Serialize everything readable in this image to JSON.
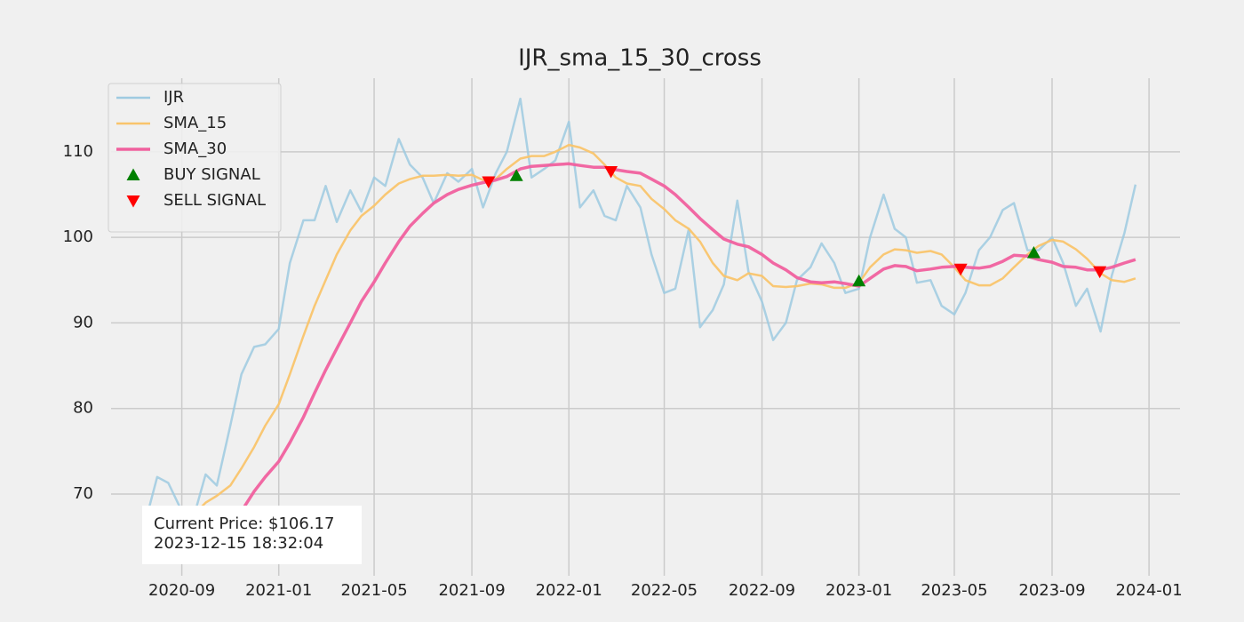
{
  "chart_data": {
    "type": "line",
    "title": "IJR_sma_15_30_cross",
    "x": [
      "2020-07-15",
      "2020-08-01",
      "2020-08-15",
      "2020-09-01",
      "2020-09-15",
      "2020-10-01",
      "2020-10-15",
      "2020-11-01",
      "2020-11-15",
      "2020-12-01",
      "2020-12-15",
      "2021-01-01",
      "2021-01-15",
      "2021-02-01",
      "2021-02-15",
      "2021-03-01",
      "2021-03-15",
      "2021-04-01",
      "2021-04-15",
      "2021-05-01",
      "2021-05-15",
      "2021-06-01",
      "2021-06-15",
      "2021-07-01",
      "2021-07-15",
      "2021-08-01",
      "2021-08-15",
      "2021-09-01",
      "2021-09-15",
      "2021-10-01",
      "2021-10-15",
      "2021-11-01",
      "2021-11-15",
      "2021-12-01",
      "2021-12-15",
      "2022-01-01",
      "2022-01-15",
      "2022-02-01",
      "2022-02-15",
      "2022-03-01",
      "2022-03-15",
      "2022-04-01",
      "2022-04-15",
      "2022-05-01",
      "2022-05-15",
      "2022-06-01",
      "2022-06-15",
      "2022-07-01",
      "2022-07-15",
      "2022-08-01",
      "2022-08-15",
      "2022-09-01",
      "2022-09-15",
      "2022-10-01",
      "2022-10-15",
      "2022-11-01",
      "2022-11-15",
      "2022-12-01",
      "2022-12-15",
      "2023-01-01",
      "2023-01-15",
      "2023-02-01",
      "2023-02-15",
      "2023-03-01",
      "2023-03-15",
      "2023-04-01",
      "2023-04-15",
      "2023-05-01",
      "2023-05-15",
      "2023-06-01",
      "2023-06-15",
      "2023-07-01",
      "2023-07-15",
      "2023-08-01",
      "2023-08-15",
      "2023-09-01",
      "2023-09-15",
      "2023-10-01",
      "2023-10-15",
      "2023-11-01",
      "2023-11-15",
      "2023-12-01",
      "2023-12-15"
    ],
    "series": [
      {
        "name": "IJR",
        "color": "#9ecae1",
        "width": 2.5,
        "values": [
          66,
          72,
          71.3,
          68,
          67,
          72.3,
          71,
          78,
          84,
          87.2,
          87.5,
          89.3,
          97,
          102,
          102,
          106,
          101.8,
          105.5,
          103,
          107,
          106,
          111.5,
          108.5,
          107,
          104,
          107.5,
          106.5,
          108,
          103.5,
          107.5,
          110,
          116.2,
          107,
          108,
          109,
          113.5,
          103.5,
          105.5,
          102.5,
          102,
          106,
          103.5,
          98,
          93.5,
          94,
          101,
          89.5,
          91.5,
          94.5,
          104.3,
          96,
          92.5,
          88,
          90,
          95,
          96.5,
          99.3,
          97,
          93.5,
          94,
          100,
          105,
          101,
          100,
          94.7,
          95,
          92,
          91,
          93.5,
          98.5,
          100,
          103.2,
          104,
          98.5,
          98.5,
          100,
          97,
          92,
          94,
          89,
          95.5,
          100.5,
          106.17
        ]
      },
      {
        "name": "SMA_15",
        "color": "#f9c46b",
        "width": 2.5,
        "values": [
          null,
          null,
          null,
          66.5,
          67.5,
          69,
          69.8,
          71,
          73,
          75.5,
          78,
          80.5,
          84,
          88.5,
          92,
          95,
          98,
          100.8,
          102.5,
          103.7,
          105,
          106.3,
          106.8,
          107.2,
          107.2,
          107.3,
          107.2,
          107.3,
          106.7,
          106.8,
          108,
          109.2,
          109.5,
          109.5,
          110,
          110.8,
          110.5,
          109.8,
          108.5,
          107,
          106.3,
          106,
          104.5,
          103.3,
          102,
          101,
          99.5,
          97,
          95.5,
          95,
          95.8,
          95.5,
          94.3,
          94.2,
          94.3,
          94.6,
          94.5,
          94.1,
          94.1,
          94.7,
          96.5,
          98,
          98.6,
          98.5,
          98.2,
          98.4,
          98,
          96.5,
          95,
          94.4,
          94.4,
          95.2,
          96.5,
          98,
          99,
          99.7,
          99.5,
          98.6,
          97.5,
          95.8,
          95,
          94.8,
          95.2
        ]
      },
      {
        "name": "SMA_30",
        "color": "#f0609e",
        "width": 3.5,
        "values": [
          null,
          null,
          null,
          null,
          null,
          64.5,
          65.5,
          66.5,
          68,
          70.3,
          72,
          73.8,
          76,
          79,
          81.8,
          84.5,
          87,
          90,
          92.5,
          94.8,
          97,
          99.5,
          101.3,
          102.8,
          104,
          105,
          105.6,
          106.1,
          106.4,
          106.7,
          107.1,
          108,
          108.3,
          108.4,
          108.5,
          108.6,
          108.4,
          108.2,
          108.2,
          107.9,
          107.7,
          107.5,
          106.8,
          106,
          105,
          103.5,
          102.2,
          100.9,
          99.8,
          99.2,
          98.9,
          98,
          97,
          96.2,
          95.3,
          94.8,
          94.7,
          94.8,
          94.6,
          94.3,
          95.2,
          96.3,
          96.7,
          96.6,
          96.1,
          96.3,
          96.5,
          96.6,
          96.5,
          96.4,
          96.6,
          97.2,
          97.9,
          97.8,
          97.4,
          97.1,
          96.6,
          96.5,
          96.2,
          96.2,
          96.5,
          97,
          97.4
        ]
      }
    ],
    "signals": [
      {
        "name": "BUY SIGNAL",
        "color": "#008000",
        "marker": "^",
        "x": [
          "2020-08-11",
          "2021-10-27",
          "2023-01-01",
          "2023-08-09"
        ],
        "values": [
          65.5,
          107.2,
          94.9,
          98.2
        ]
      },
      {
        "name": "SELL SIGNAL",
        "color": "#ff0000",
        "marker": "v",
        "x": [
          "2021-09-22",
          "2022-02-23",
          "2023-05-09",
          "2023-10-31"
        ],
        "values": [
          106.5,
          107.7,
          96.3,
          96.0
        ]
      }
    ],
    "annotation": [
      "Current Price: $106.17",
      "2023-12-15 18:32:04"
    ],
    "xlim": [
      "2020-06-04",
      "2024-02-09"
    ],
    "ylim": [
      60.45,
      118.6
    ],
    "yticks": [
      70,
      80,
      90,
      100,
      110
    ],
    "xticks": [
      {
        "value": "2020-09-01",
        "label": "2020-09"
      },
      {
        "value": "2021-01-01",
        "label": "2021-01"
      },
      {
        "value": "2021-05-01",
        "label": "2021-05"
      },
      {
        "value": "2021-09-01",
        "label": "2021-09"
      },
      {
        "value": "2022-01-01",
        "label": "2022-01"
      },
      {
        "value": "2022-05-01",
        "label": "2022-05"
      },
      {
        "value": "2022-09-01",
        "label": "2022-09"
      },
      {
        "value": "2023-01-01",
        "label": "2023-01"
      },
      {
        "value": "2023-05-01",
        "label": "2023-05"
      },
      {
        "value": "2023-09-01",
        "label": "2023-09"
      },
      {
        "value": "2024-01-01",
        "label": "2024-01"
      }
    ],
    "grid": true,
    "legend": "upper left"
  }
}
